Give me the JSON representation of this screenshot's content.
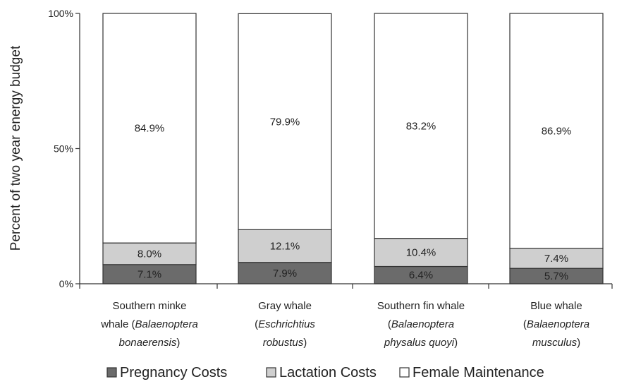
{
  "chart_data": {
    "type": "bar",
    "stacked": true,
    "ylabel": "Percent of two year energy budget",
    "ylim": [
      0,
      100
    ],
    "yticks": [
      {
        "value": 0,
        "label": "0%"
      },
      {
        "value": 50,
        "label": "50%"
      },
      {
        "value": 100,
        "label": "100%"
      }
    ],
    "grid": false,
    "legend_position": "bottom",
    "categories": [
      {
        "line1": "Southern minke",
        "line2_prefix": "whale (",
        "line2_italic": "Balaenoptera",
        "line2_suffix": "",
        "line3_italic": "bonaerensis",
        "line3_suffix": ")"
      },
      {
        "line1": "Gray whale",
        "line2_prefix": "(",
        "line2_italic": "Eschrichtius",
        "line2_suffix": "",
        "line3_italic": "robustus",
        "line3_suffix": ")"
      },
      {
        "line1": "Southern fin whale",
        "line2_prefix": "(",
        "line2_italic": "Balaenoptera",
        "line2_suffix": "",
        "line3_italic": "physalus quoyi",
        "line3_suffix": ")"
      },
      {
        "line1": "Blue whale",
        "line2_prefix": "(",
        "line2_italic": "Balaenoptera",
        "line2_suffix": "",
        "line3_italic": "musculus",
        "line3_suffix": ")"
      }
    ],
    "series": [
      {
        "name": "Pregnancy Costs",
        "color": "#6b6b6b",
        "values": [
          7.1,
          7.9,
          6.4,
          5.7
        ],
        "labels": [
          "7.1%",
          "7.9%",
          "6.4%",
          "5.7%"
        ]
      },
      {
        "name": "Lactation Costs",
        "color": "#cfcfcf",
        "values": [
          8.0,
          12.1,
          10.4,
          7.4
        ],
        "labels": [
          "8.0%",
          "12.1%",
          "10.4%",
          "7.4%"
        ]
      },
      {
        "name": "Female Maintenance",
        "color": "#ffffff",
        "values": [
          84.9,
          79.9,
          83.2,
          86.9
        ],
        "labels": [
          "84.9%",
          "79.9%",
          "83.2%",
          "86.9%"
        ]
      }
    ]
  }
}
